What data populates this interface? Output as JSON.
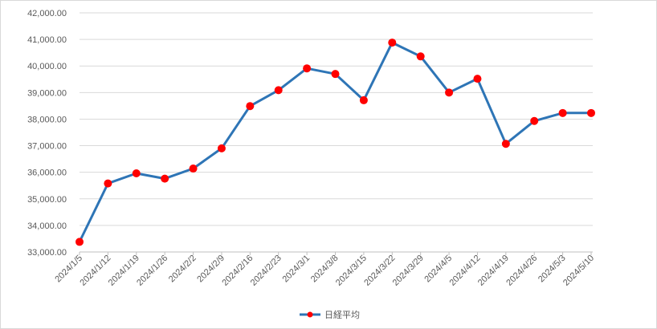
{
  "chart_data": {
    "type": "line",
    "title": "",
    "xlabel": "",
    "ylabel": "",
    "ylim": [
      33000,
      42000
    ],
    "y_tick_step": 1000,
    "y_tick_labels": [
      "33,000.00",
      "34,000.00",
      "35,000.00",
      "36,000.00",
      "37,000.00",
      "38,000.00",
      "39,000.00",
      "40,000.00",
      "41,000.00",
      "42,000.00"
    ],
    "categories": [
      "2024/1/5",
      "2024/1/12",
      "2024/1/19",
      "2024/1/26",
      "2024/2/2",
      "2024/2/9",
      "2024/2/16",
      "2024/2/23",
      "2024/3/1",
      "2024/3/8",
      "2024/3/15",
      "2024/3/22",
      "2024/3/29",
      "2024/4/5",
      "2024/4/12",
      "2024/4/19",
      "2024/4/26",
      "2024/5/3",
      "2024/5/10"
    ],
    "series": [
      {
        "name": "日経平均",
        "color": "#2e75b6",
        "marker_color": "#ff0000",
        "values": [
          33380,
          35580,
          35960,
          35760,
          36140,
          36900,
          38490,
          39090,
          39910,
          39700,
          38710,
          40880,
          40360,
          39000,
          39520,
          37070,
          37930,
          38230,
          38230
        ]
      }
    ],
    "grid": true,
    "legend_position": "bottom"
  }
}
